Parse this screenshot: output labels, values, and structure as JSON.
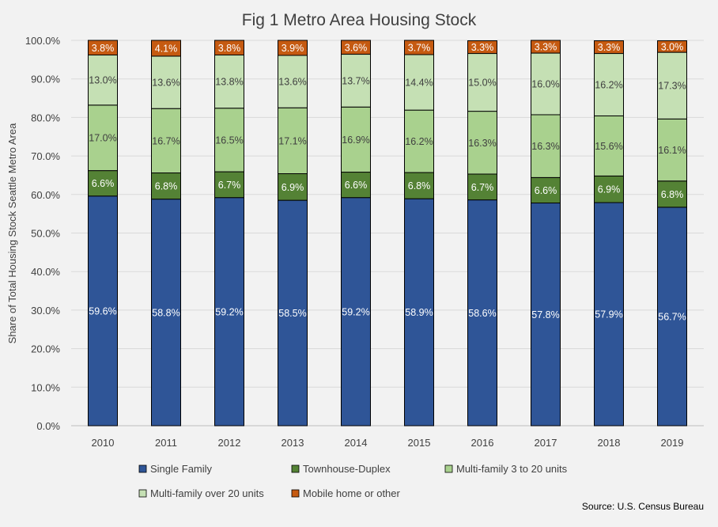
{
  "chart_data": {
    "type": "stacked-bar",
    "title": "Fig 1 Metro Area Housing Stock",
    "ylabel": "Share of Total Housing Stock Seattle Metro Area",
    "xlabel": "",
    "ylim": [
      0,
      100
    ],
    "ytick_step": 10,
    "ytick_format": "percent-1dp",
    "grid": true,
    "legend_position": "bottom",
    "categories": [
      "2010",
      "2011",
      "2012",
      "2013",
      "2014",
      "2015",
      "2016",
      "2017",
      "2018",
      "2019"
    ],
    "series": [
      {
        "name": "Single Family",
        "color": "#2f5597",
        "label_color": "#ffffff",
        "values": [
          59.6,
          58.8,
          59.2,
          58.5,
          59.2,
          58.9,
          58.6,
          57.8,
          57.9,
          56.7
        ]
      },
      {
        "name": "Townhouse-Duplex",
        "color": "#548235",
        "label_color": "#ffffff",
        "values": [
          6.6,
          6.8,
          6.7,
          6.9,
          6.6,
          6.8,
          6.7,
          6.6,
          6.9,
          6.8
        ]
      },
      {
        "name": "Multi-family 3 to 20 units",
        "color": "#a9d18e",
        "label_color": "#404040",
        "values": [
          17.0,
          16.7,
          16.5,
          17.1,
          16.9,
          16.2,
          16.3,
          16.3,
          15.6,
          16.1
        ]
      },
      {
        "name": "Multi-family over 20 units",
        "color": "#c5e0b4",
        "label_color": "#404040",
        "values": [
          13.0,
          13.6,
          13.8,
          13.6,
          13.7,
          14.4,
          15.0,
          16.0,
          16.2,
          17.3
        ]
      },
      {
        "name": "Mobile home or other",
        "color": "#c55a11",
        "label_color": "#ffffff",
        "values": [
          3.8,
          4.1,
          3.8,
          3.9,
          3.6,
          3.7,
          3.3,
          3.3,
          3.3,
          3.0
        ]
      }
    ],
    "source": "Source: U.S. Census Bureau"
  }
}
